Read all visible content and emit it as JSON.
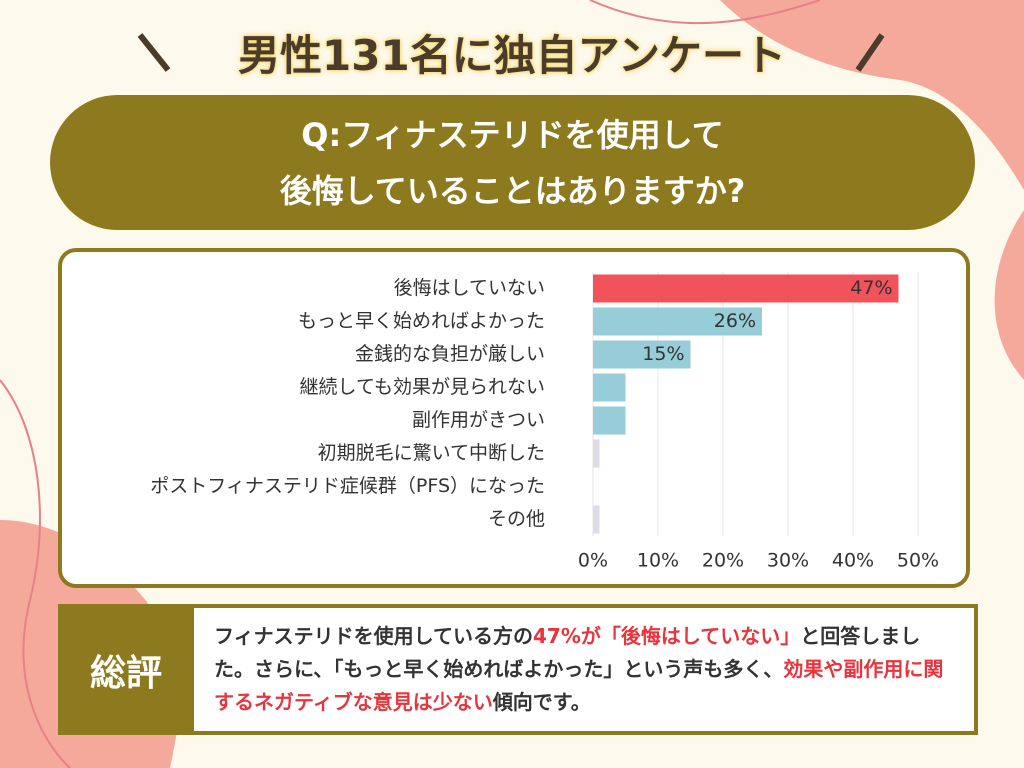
{
  "header": {
    "title": "男性131名に独自アンケート"
  },
  "question": {
    "lines": [
      "Q:フィナステリドを使用して",
      "後悔していることはありますか?"
    ]
  },
  "chart_data": {
    "type": "hbar",
    "categories": [
      "後悔はしていない",
      "もっと早く始めればよかった",
      "金銭的な負担が厳しい",
      "継続しても効果が見られない",
      "副作用がきつい",
      "初期脱毛に驚いて中断した",
      "ポストフィナステリド症候群（PFS）になった",
      "その他"
    ],
    "values": [
      47,
      26,
      15,
      5,
      5,
      1,
      0,
      1
    ],
    "value_labels": [
      "47%",
      "26%",
      "15%",
      null,
      null,
      null,
      null,
      null
    ],
    "colors": [
      "#f0545a",
      "#96cdd9",
      "#96cdd9",
      "#96cdd9",
      "#96cdd9",
      "#dcdce6",
      "#dcdce6",
      "#dcdce6"
    ],
    "xlim": [
      0,
      50
    ],
    "xticks": [
      {
        "value": 0,
        "label": "0%"
      },
      {
        "value": 10,
        "label": "10%"
      },
      {
        "value": 20,
        "label": "20%"
      },
      {
        "value": 30,
        "label": "30%"
      },
      {
        "value": 40,
        "label": "40%"
      },
      {
        "value": 50,
        "label": "50%"
      }
    ],
    "grid": true
  },
  "summary": {
    "label": "総評",
    "segments": [
      {
        "text": "フィナステリドを使用している方の",
        "highlight": false
      },
      {
        "text": "47%が「後悔はしていない」",
        "highlight": true
      },
      {
        "text": "と回答しました。さらに、「もっと早く始めればよかった」という声も多く、",
        "highlight": false
      },
      {
        "text": "効果や副作用に関するネガティブな意見は少ない",
        "highlight": true
      },
      {
        "text": "傾向です。",
        "highlight": false
      }
    ]
  }
}
